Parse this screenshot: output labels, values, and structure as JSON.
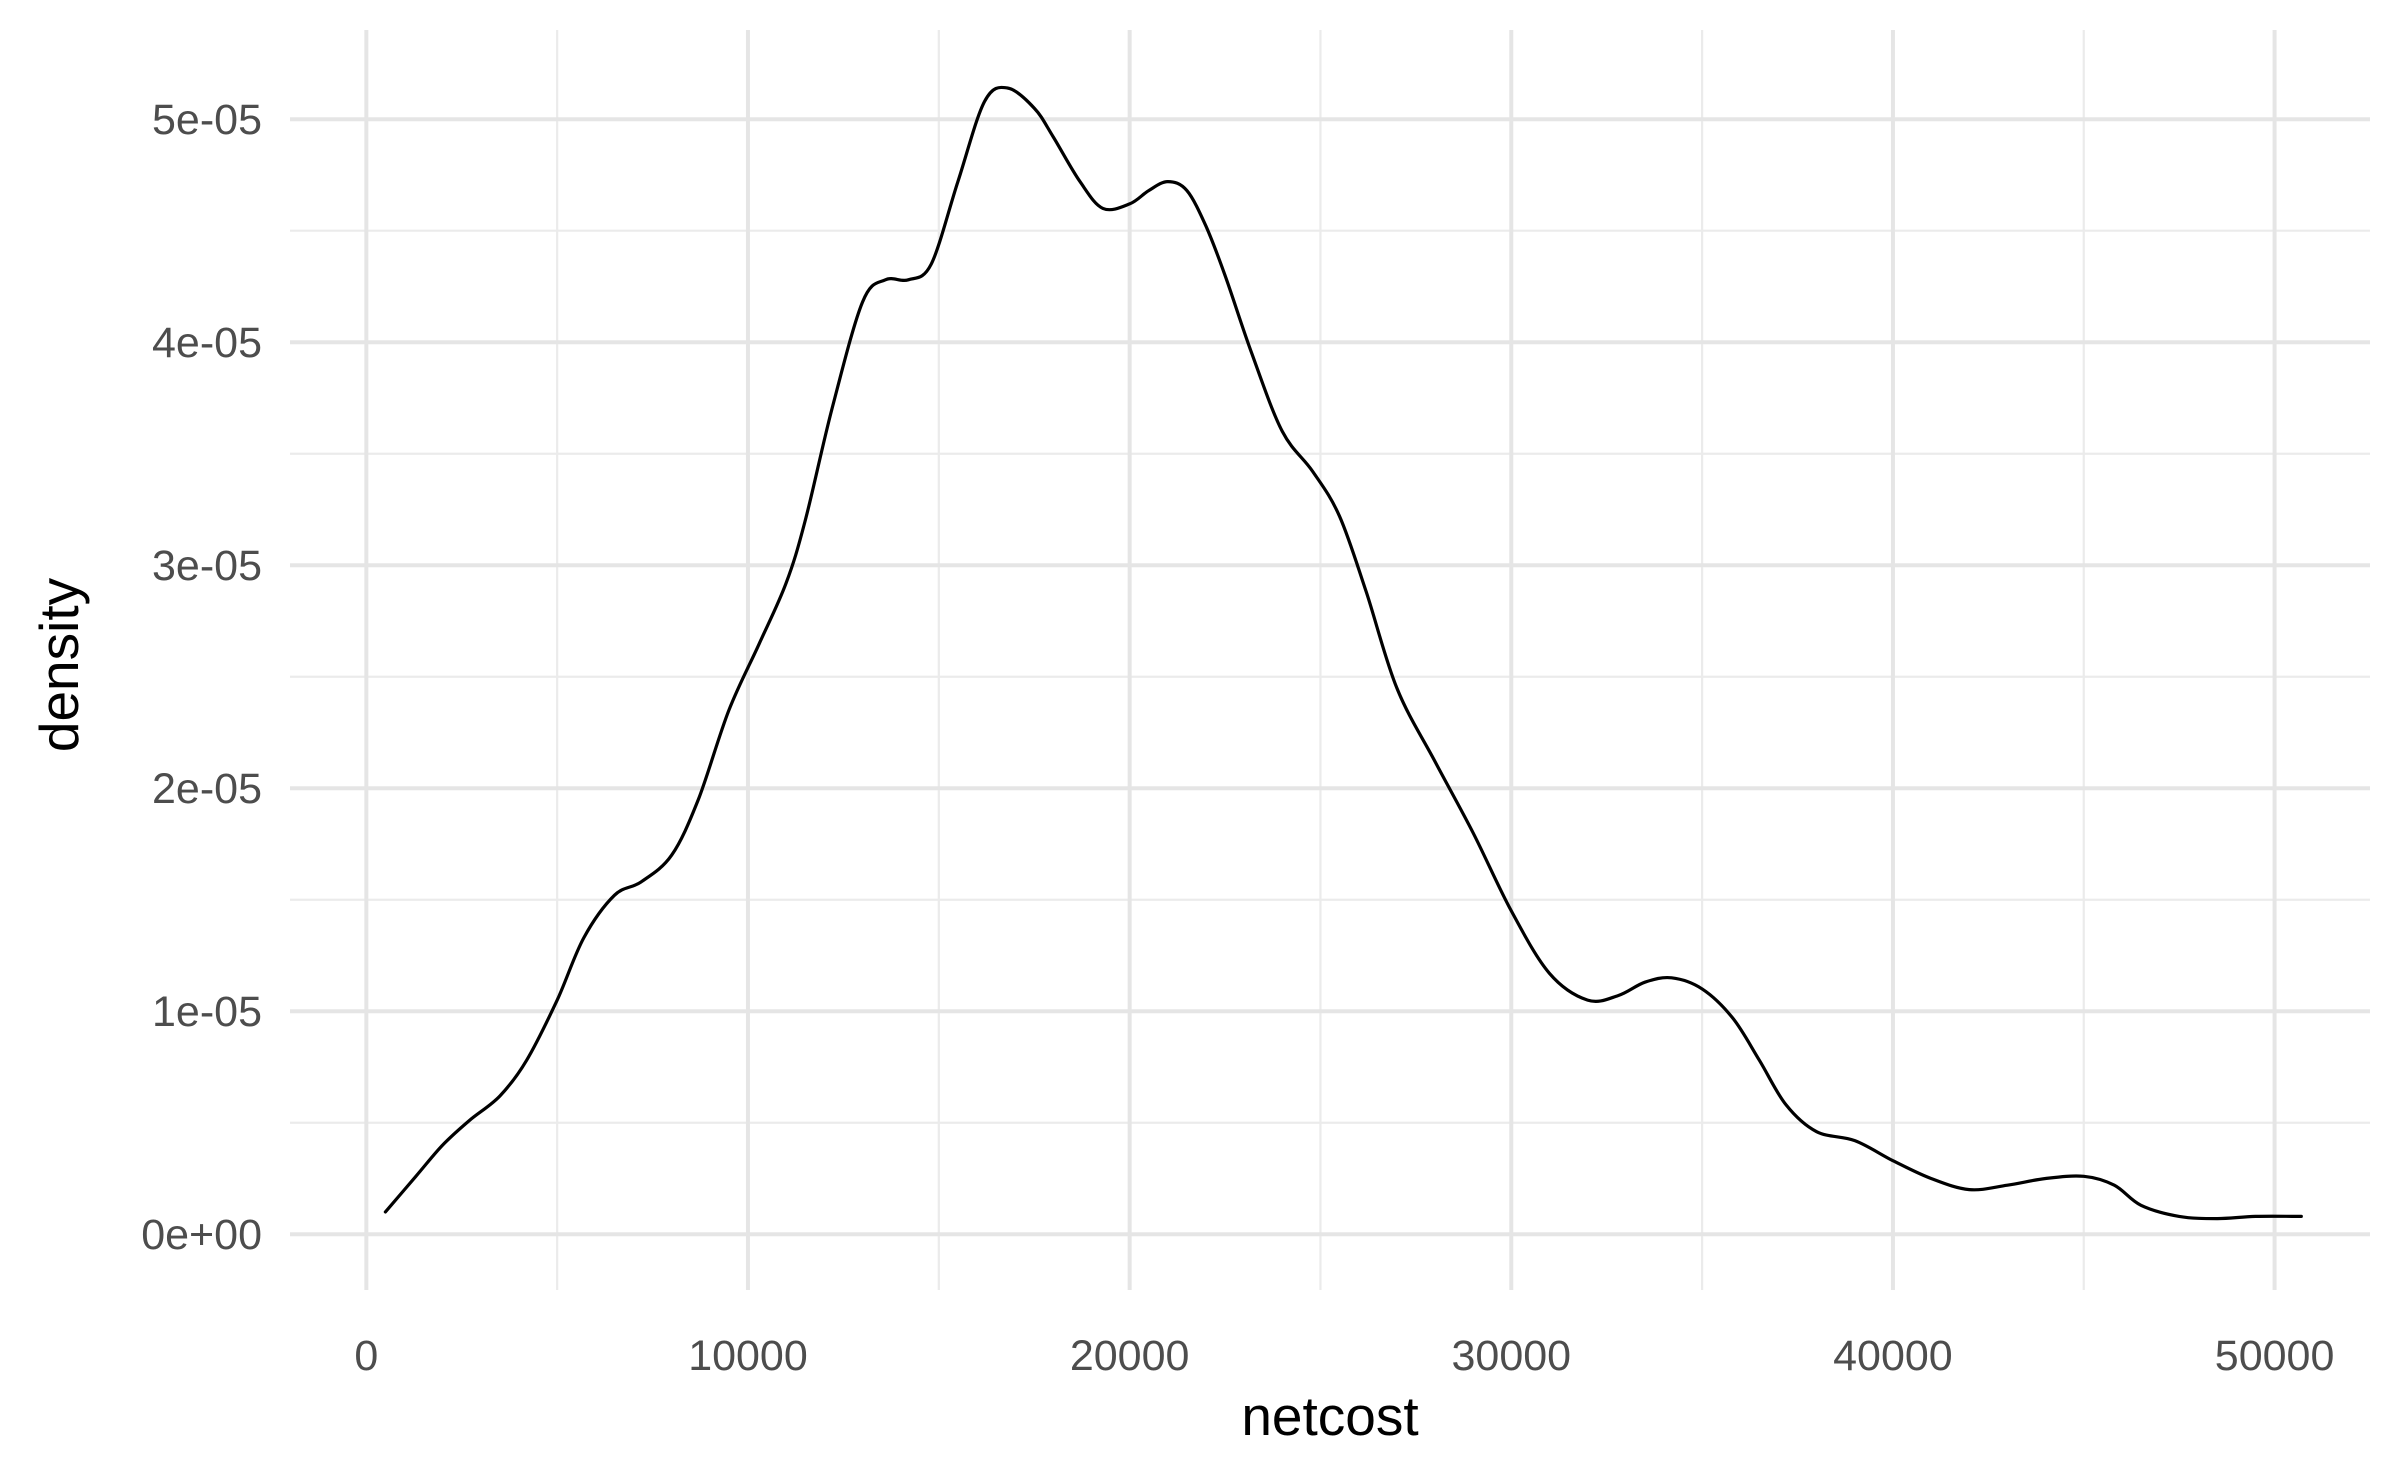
{
  "chart_data": {
    "type": "line",
    "title": "",
    "xlabel": "netcost",
    "ylabel": "density",
    "xlim": [
      -2000,
      52500
    ],
    "ylim": [
      -2.5e-06,
      5.4e-05
    ],
    "x_ticks": [
      0,
      10000,
      20000,
      30000,
      40000,
      50000
    ],
    "x_tick_labels": [
      "0",
      "10000",
      "20000",
      "30000",
      "40000",
      "50000"
    ],
    "x_minor_ticks": [
      5000,
      15000,
      25000,
      35000,
      45000
    ],
    "y_ticks": [
      0,
      1e-05,
      2e-05,
      3e-05,
      4e-05,
      5e-05
    ],
    "y_tick_labels": [
      "0e+00",
      "1e-05",
      "2e-05",
      "3e-05",
      "4e-05",
      "5e-05"
    ],
    "y_minor_ticks": [
      5e-06,
      1.5e-05,
      2.5e-05,
      3.5e-05,
      4.5e-05
    ],
    "grid": true,
    "legend": "none",
    "line_color": "#000000",
    "series": [
      {
        "x": [
          500,
          1300,
          2000,
          2700,
          3500,
          4200,
          5000,
          5700,
          6500,
          7200,
          8000,
          8700,
          9500,
          10300,
          11000,
          11500,
          12200,
          13000,
          13600,
          14200,
          14800,
          15500,
          16200,
          16800,
          17500,
          18000,
          18700,
          19300,
          20000,
          20500,
          21000,
          21500,
          22000,
          22500,
          23200,
          24000,
          24800,
          25500,
          26200,
          27000,
          28000,
          29000,
          30000,
          31000,
          32000,
          32800,
          33500,
          34200,
          35000,
          35800,
          36500,
          37200,
          38000,
          39000,
          40000,
          41000,
          42000,
          43000,
          44000,
          45000,
          45800,
          46500,
          47500,
          48500,
          49500,
          50700
        ],
        "y": [
          1e-06,
          2.6e-06,
          4e-06,
          5.1e-06,
          6.2e-06,
          7.8e-06,
          1.05e-05,
          1.33e-05,
          1.52e-05,
          1.58e-05,
          1.7e-05,
          1.95e-05,
          2.35e-05,
          2.65e-05,
          2.92e-05,
          3.2e-05,
          3.7e-05,
          4.18e-05,
          4.28e-05,
          4.28e-05,
          4.35e-05,
          4.72e-05,
          5.08e-05,
          5.14e-05,
          5.05e-05,
          4.92e-05,
          4.72e-05,
          4.6e-05,
          4.62e-05,
          4.68e-05,
          4.72e-05,
          4.68e-05,
          4.52e-05,
          4.3e-05,
          3.95e-05,
          3.6e-05,
          3.42e-05,
          3.22e-05,
          2.88e-05,
          2.45e-05,
          2.12e-05,
          1.8e-05,
          1.45e-05,
          1.17e-05,
          1.05e-05,
          1.07e-05,
          1.13e-05,
          1.15e-05,
          1.1e-05,
          9.7e-06,
          7.8e-06,
          5.8e-06,
          4.6e-06,
          4.2e-06,
          3.3e-06,
          2.5e-06,
          2e-06,
          2.2e-06,
          2.5e-06,
          2.6e-06,
          2.2e-06,
          1.3e-06,
          8e-07,
          7e-07,
          8e-07,
          8e-07
        ]
      }
    ]
  }
}
